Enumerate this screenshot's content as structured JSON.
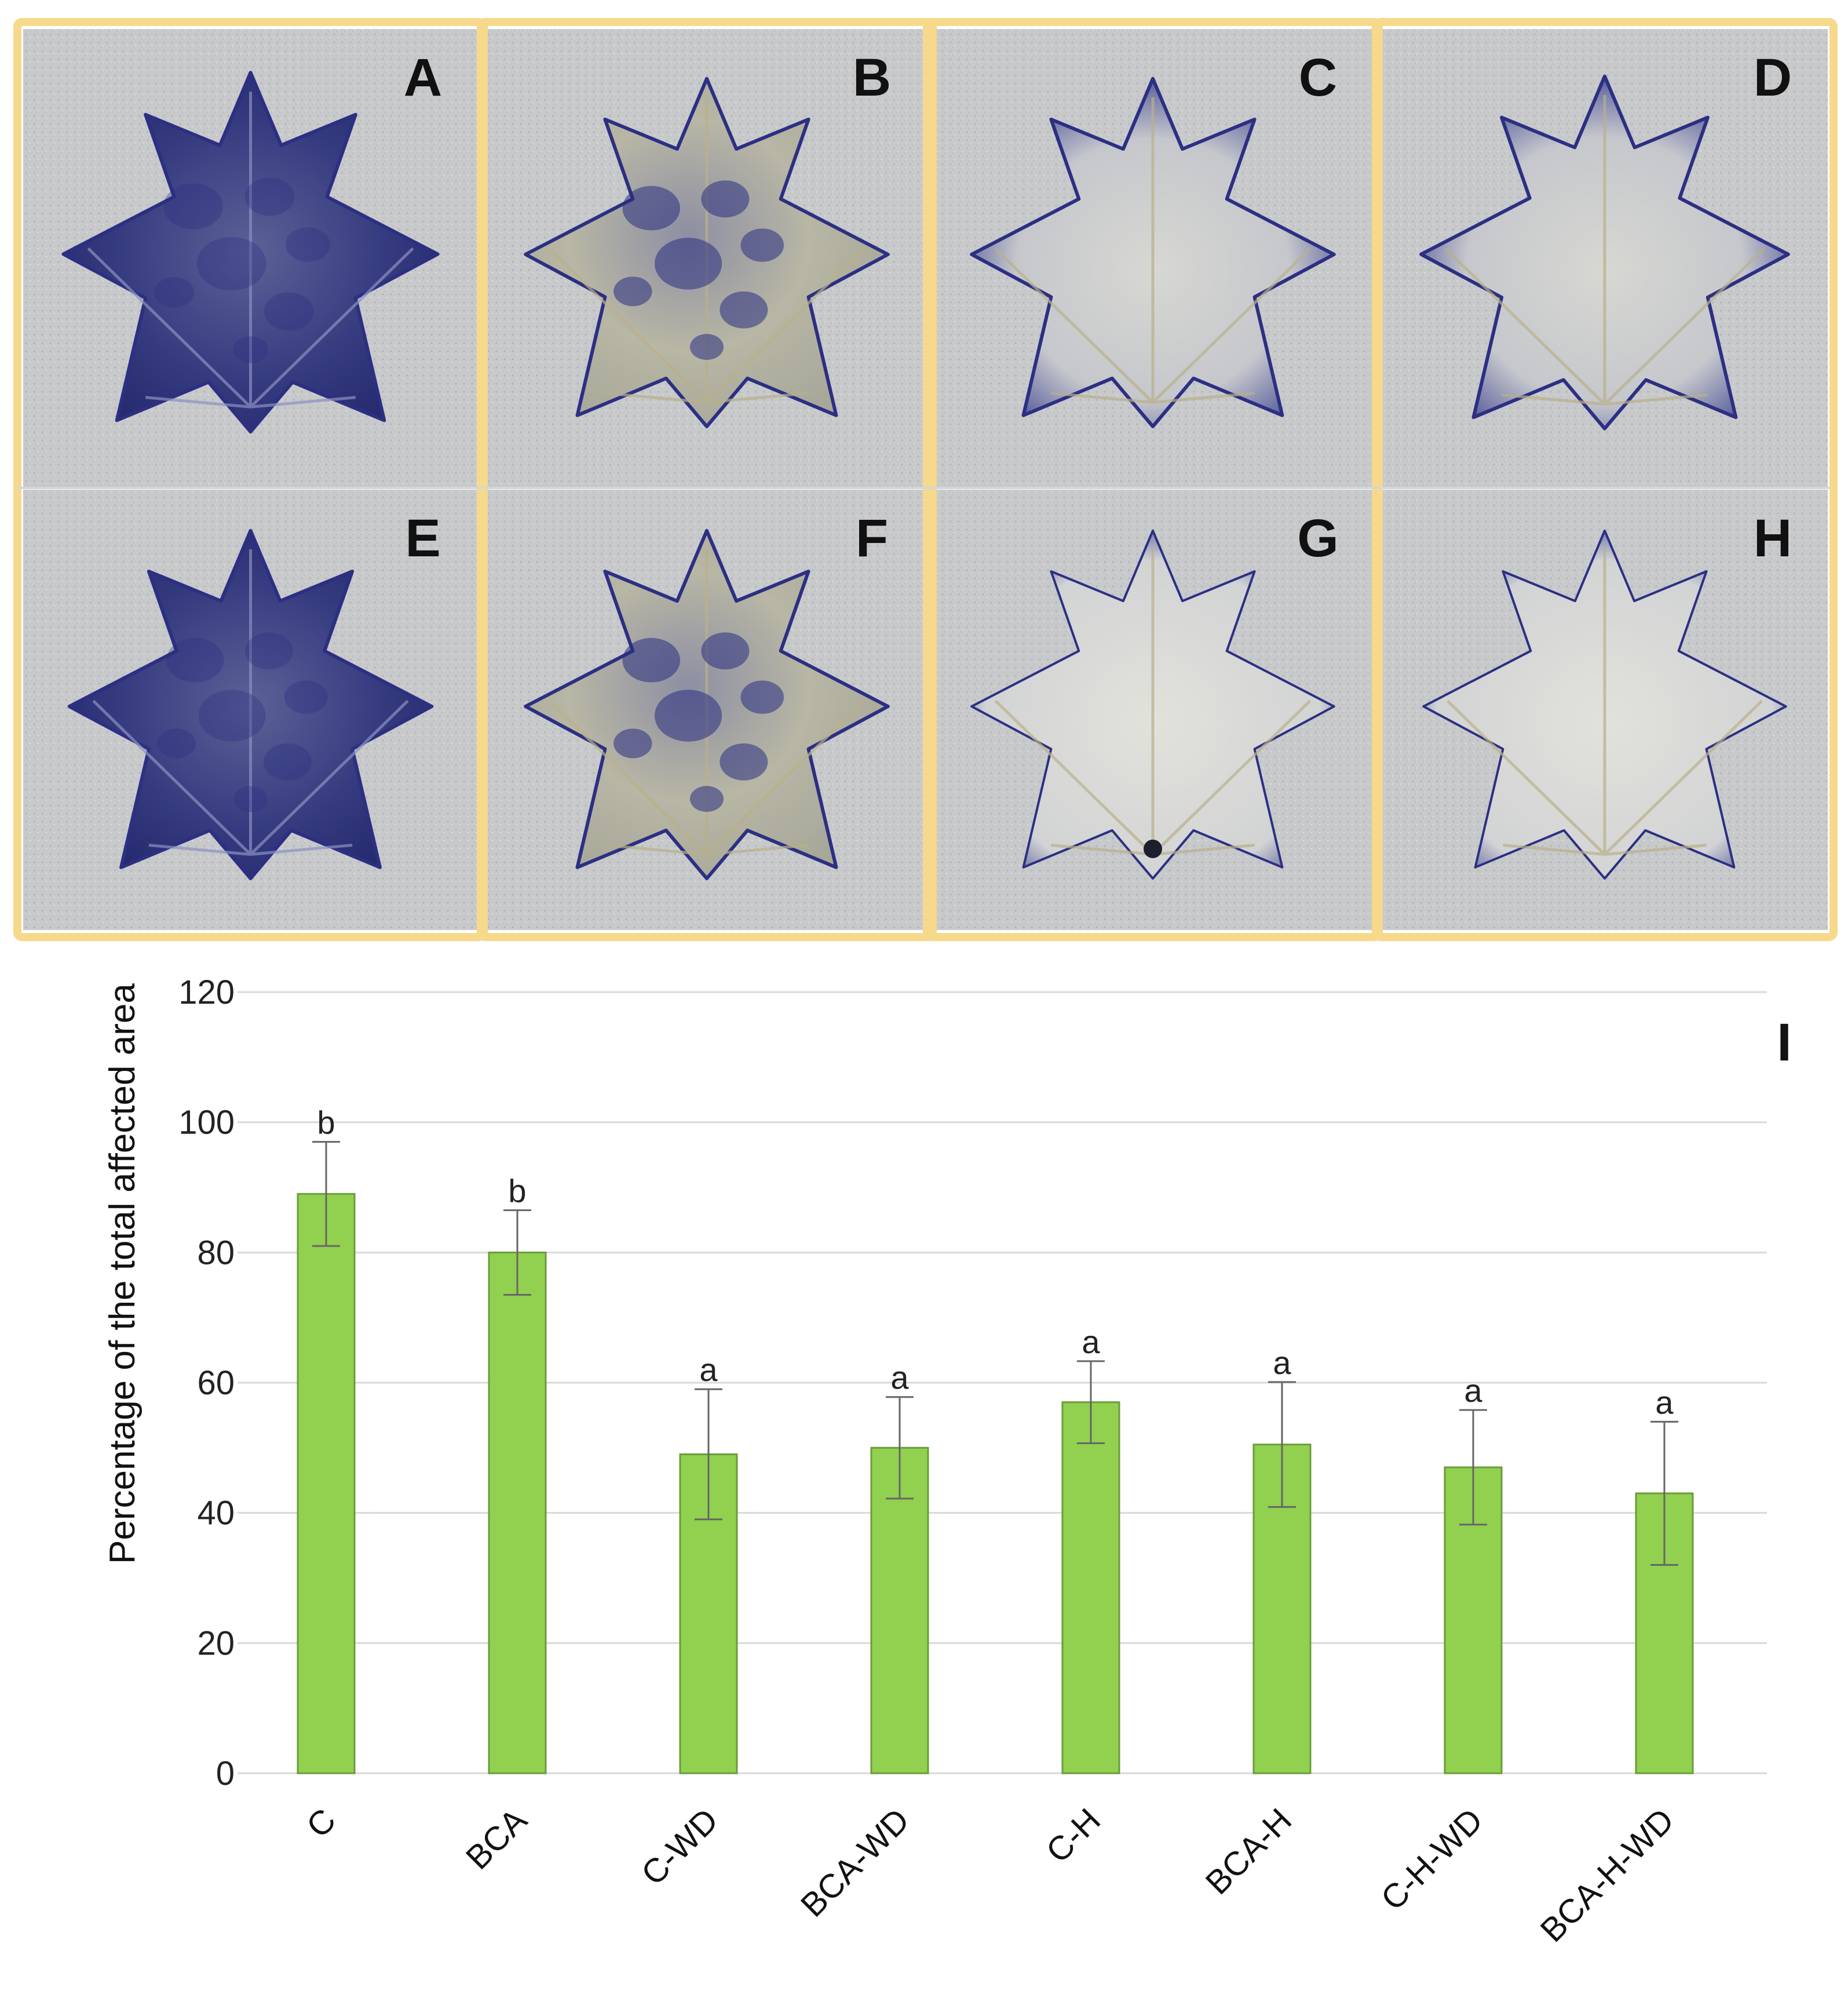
{
  "panels": [
    {
      "letter": "A",
      "stain": "heavy"
    },
    {
      "letter": "B",
      "stain": "blotchy"
    },
    {
      "letter": "C",
      "stain": "edge"
    },
    {
      "letter": "D",
      "stain": "edge"
    },
    {
      "letter": "E",
      "stain": "heavy"
    },
    {
      "letter": "F",
      "stain": "blotchy"
    },
    {
      "letter": "G",
      "stain": "light"
    },
    {
      "letter": "H",
      "stain": "light"
    }
  ],
  "colors": {
    "frame": "#f7d98c",
    "bar_fill": "#92d050",
    "bar_stroke": "#6a9c3a",
    "stain": "#2c2f82",
    "gridline": "#d9d9d9"
  },
  "chart_data": {
    "type": "bar",
    "panel_label": "I",
    "title": "",
    "xlabel": "",
    "ylabel": "Percentage of the total affected area",
    "ylim": [
      0,
      120
    ],
    "yticks": [
      0,
      20,
      40,
      60,
      80,
      100,
      120
    ],
    "grid": true,
    "categories": [
      "C",
      "BCA",
      "C-WD",
      "BCA-WD",
      "C-H",
      "BCA-H",
      "C-H-WD",
      "BCA-H-WD"
    ],
    "values": [
      89,
      80,
      49,
      50,
      57,
      50.5,
      47,
      43
    ],
    "errors": [
      8,
      6.5,
      10,
      7.8,
      6.3,
      9.6,
      8.8,
      11
    ],
    "significance": [
      "b",
      "b",
      "a",
      "a",
      "a",
      "a",
      "a",
      "a"
    ]
  }
}
